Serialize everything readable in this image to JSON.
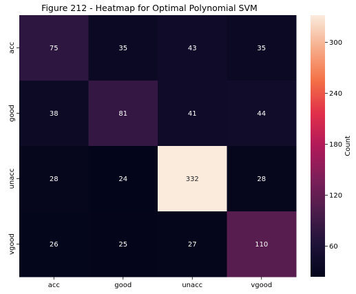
{
  "chart_data": {
    "type": "heatmap",
    "title": "Figure 212 - Heatmap for Optimal Polynomial SVM",
    "x_categories": [
      "acc",
      "good",
      "unacc",
      "vgood"
    ],
    "y_categories": [
      "acc",
      "good",
      "unacc",
      "vgood"
    ],
    "values": [
      [
        75,
        35,
        43,
        35
      ],
      [
        38,
        81,
        41,
        44
      ],
      [
        28,
        24,
        332,
        28
      ],
      [
        26,
        25,
        27,
        110
      ]
    ],
    "colorbar": {
      "label": "Count",
      "ticks": [
        60,
        120,
        180,
        240,
        300
      ],
      "range": [
        24,
        332
      ],
      "colormap": "rocket"
    }
  }
}
